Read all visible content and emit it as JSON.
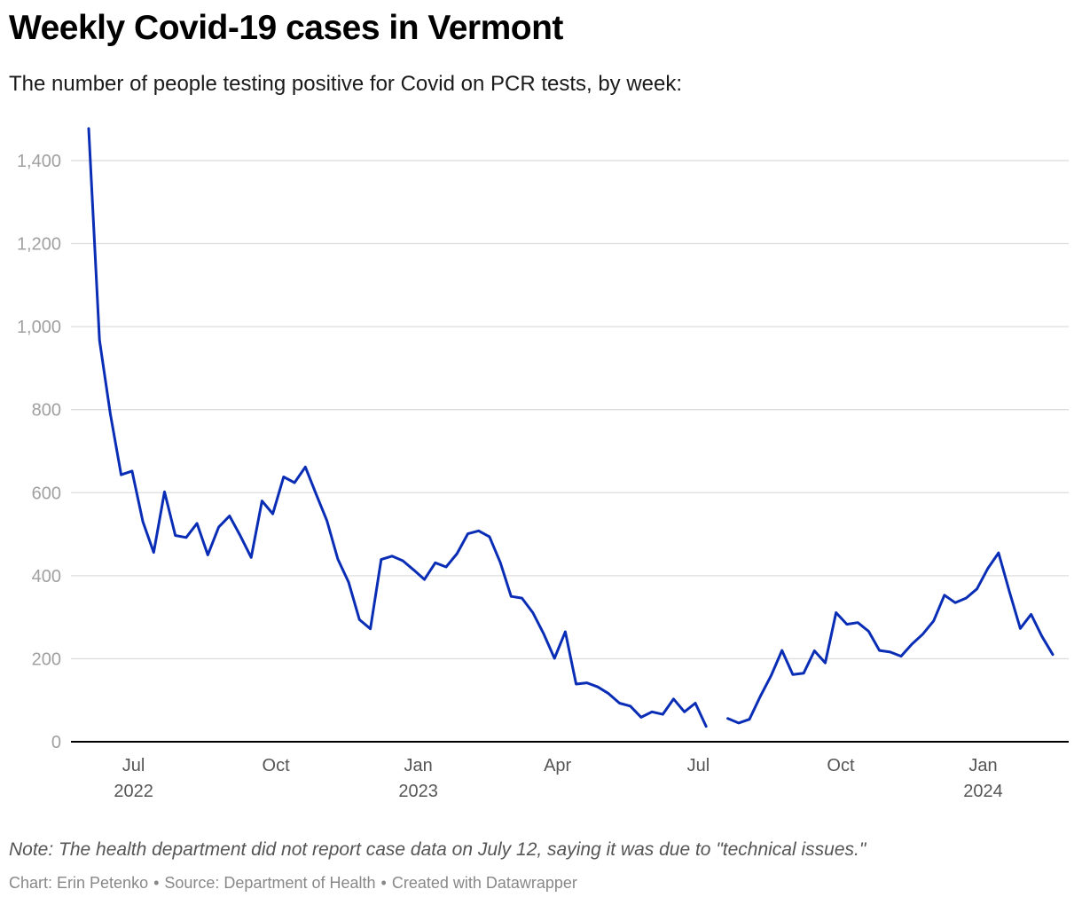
{
  "header": {
    "title": "Weekly Covid-19 cases in Vermont",
    "subtitle": "The number of people testing positive for Covid on PCR tests, by week:"
  },
  "footer": {
    "note": "Note: The health department did not report case data on July 12, saying it was due to \"technical issues.\"",
    "credit": "Chart: Erin Petenko",
    "source": "Source: Department of Health",
    "tool": "Created with Datawrapper",
    "separator": "•"
  },
  "colors": {
    "line": "#0a2db5",
    "grid": "#dddddd",
    "axis": "#000000"
  },
  "chart_data": {
    "type": "line",
    "title": "Weekly Covid-19 cases in Vermont",
    "xlabel": "",
    "ylabel": "",
    "ylim": [
      0,
      1400
    ],
    "yticks": [
      0,
      200,
      400,
      600,
      800,
      1000,
      1200,
      1400
    ],
    "ytick_labels": [
      "0",
      "200",
      "400",
      "600",
      "800",
      "1,000",
      "1,200",
      "1,400"
    ],
    "xlim": [
      "2022-06-01",
      "2024-02-20"
    ],
    "xticks": [
      {
        "date": "2022-07-01",
        "label": "Jul",
        "sublabel": "2022"
      },
      {
        "date": "2022-10-01",
        "label": "Oct",
        "sublabel": ""
      },
      {
        "date": "2023-01-01",
        "label": "Jan",
        "sublabel": "2023"
      },
      {
        "date": "2023-04-01",
        "label": "Apr",
        "sublabel": ""
      },
      {
        "date": "2023-07-01",
        "label": "Jul",
        "sublabel": ""
      },
      {
        "date": "2023-10-01",
        "label": "Oct",
        "sublabel": ""
      },
      {
        "date": "2024-01-01",
        "label": "Jan",
        "sublabel": "2024"
      }
    ],
    "grid": true,
    "legend": "none",
    "series": [
      {
        "x": [
          "2022-06-02",
          "2022-06-09",
          "2022-06-16",
          "2022-06-23",
          "2022-06-30",
          "2022-07-07",
          "2022-07-14",
          "2022-07-21",
          "2022-07-28",
          "2022-08-04",
          "2022-08-11",
          "2022-08-18",
          "2022-08-25",
          "2022-09-01",
          "2022-09-08",
          "2022-09-15",
          "2022-09-22",
          "2022-09-29",
          "2022-10-06",
          "2022-10-13",
          "2022-10-20",
          "2022-10-27",
          "2022-11-03",
          "2022-11-10",
          "2022-11-17",
          "2022-11-24",
          "2022-12-01",
          "2022-12-08",
          "2022-12-15",
          "2022-12-22",
          "2022-12-29",
          "2023-01-05",
          "2023-01-12",
          "2023-01-19",
          "2023-01-26",
          "2023-02-02",
          "2023-02-09",
          "2023-02-16",
          "2023-02-23",
          "2023-03-02",
          "2023-03-09",
          "2023-03-16",
          "2023-03-23",
          "2023-03-30",
          "2023-04-06",
          "2023-04-13",
          "2023-04-20",
          "2023-04-27",
          "2023-05-04",
          "2023-05-11",
          "2023-05-18",
          "2023-05-25",
          "2023-06-01",
          "2023-06-08",
          "2023-06-15",
          "2023-06-22",
          "2023-06-29",
          "2023-07-06"
        ],
        "values": [
          1477,
          967,
          790,
          643,
          652,
          530,
          456,
          602,
          497,
          492,
          526,
          450,
          517,
          544,
          496,
          444,
          580,
          549,
          638,
          624,
          662,
          596,
          532,
          440,
          384,
          294,
          272,
          439,
          447,
          436,
          414,
          391,
          431,
          421,
          453,
          501,
          508,
          494,
          432,
          350,
          346,
          311,
          260,
          201,
          265,
          139,
          142,
          132,
          116,
          93,
          86,
          59,
          72,
          66,
          103,
          72,
          93,
          37
        ]
      },
      {
        "x": [
          "2023-07-20",
          "2023-07-27",
          "2023-08-03",
          "2023-08-10",
          "2023-08-17",
          "2023-08-24",
          "2023-08-31",
          "2023-09-07",
          "2023-09-14",
          "2023-09-21",
          "2023-09-28",
          "2023-10-05",
          "2023-10-12",
          "2023-10-19",
          "2023-10-26",
          "2023-11-02",
          "2023-11-09",
          "2023-11-16",
          "2023-11-23",
          "2023-11-30",
          "2023-12-07",
          "2023-12-14",
          "2023-12-21",
          "2023-12-28",
          "2024-01-04",
          "2024-01-11",
          "2024-01-18",
          "2024-01-25",
          "2024-02-01",
          "2024-02-08",
          "2024-02-15"
        ],
        "values": [
          56,
          45,
          54,
          109,
          159,
          220,
          162,
          165,
          219,
          190,
          311,
          283,
          287,
          266,
          220,
          216,
          206,
          235,
          259,
          291,
          353,
          335,
          346,
          368,
          417,
          455,
          362,
          273,
          307,
          254,
          210
        ]
      }
    ]
  }
}
